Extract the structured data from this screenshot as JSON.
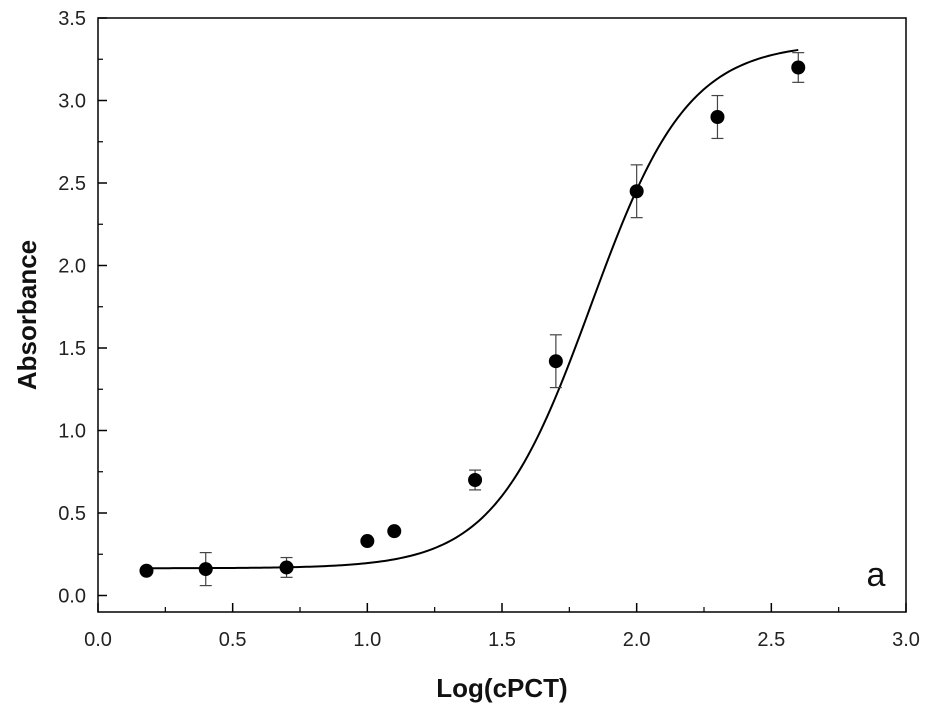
{
  "chart_data": {
    "type": "scatter",
    "xlabel": "Log(cPCT)",
    "ylabel": "Absorbance",
    "panel_label": "a",
    "xlim": [
      0.0,
      3.0
    ],
    "ylim": [
      -0.1,
      3.5
    ],
    "xticks": [
      "0.0",
      "0.5",
      "1.0",
      "1.5",
      "2.0",
      "2.5",
      "3.0"
    ],
    "yticks": [
      "0.0",
      "0.5",
      "1.0",
      "1.5",
      "2.0",
      "2.5",
      "3.0",
      "3.5"
    ],
    "grid": false,
    "series": [
      {
        "x": [
          0.18,
          0.4,
          0.7,
          1.0,
          1.1,
          1.4,
          1.7,
          2.0,
          2.3,
          2.6
        ],
        "y": [
          0.15,
          0.16,
          0.17,
          0.33,
          0.39,
          0.7,
          1.42,
          2.45,
          2.9,
          3.2
        ],
        "err": [
          0.0,
          0.1,
          0.06,
          0.0,
          0.0,
          0.06,
          0.16,
          0.16,
          0.13,
          0.09
        ]
      }
    ],
    "fit": {
      "model": "sigmoidal",
      "bottom": 0.165,
      "top": 3.35,
      "x0": 1.83,
      "dx": 0.18
    },
    "colors": {
      "points": "#000000",
      "line": "#000000",
      "axes": "#000000"
    }
  }
}
